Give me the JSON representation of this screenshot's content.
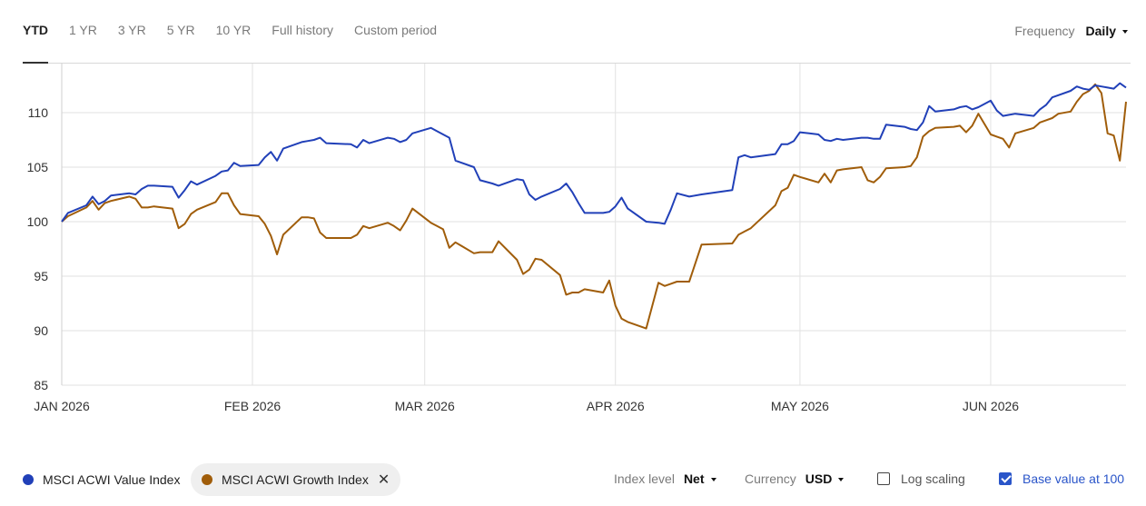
{
  "periods": [
    "YTD",
    "1 YR",
    "3 YR",
    "5 YR",
    "10 YR",
    "Full history",
    "Custom period"
  ],
  "active_period": "YTD",
  "frequency": {
    "label": "Frequency",
    "value": "Daily"
  },
  "legend": [
    {
      "name": "MSCI ACWI Value Index",
      "color": "#2140b8",
      "removable": false
    },
    {
      "name": "MSCI ACWI Growth Index",
      "color": "#a05d0a",
      "removable": true
    }
  ],
  "controls": {
    "index_level": {
      "label": "Index level",
      "value": "Net"
    },
    "currency": {
      "label": "Currency",
      "value": "USD"
    },
    "log_scaling": {
      "label": "Log scaling",
      "checked": false
    },
    "base_value": {
      "label": "Base value at 100",
      "checked": true
    }
  },
  "chart_data": {
    "type": "line",
    "x_start": "2026-01-01",
    "x_end": "2026-06-23",
    "x_ticks": [
      {
        "date": "2026-01-01",
        "label": "JAN 2026"
      },
      {
        "date": "2026-02-01",
        "label": "FEB 2026"
      },
      {
        "date": "2026-03-01",
        "label": "MAR 2026"
      },
      {
        "date": "2026-04-01",
        "label": "APR 2026"
      },
      {
        "date": "2026-05-01",
        "label": "MAY 2026"
      },
      {
        "date": "2026-06-01",
        "label": "JUN 2026"
      }
    ],
    "ylim": [
      85,
      114.5
    ],
    "y_ticks": [
      85,
      90,
      95,
      100,
      105,
      110
    ],
    "grid": true,
    "legend_position": "bottom-left",
    "series": [
      {
        "name": "MSCI ACWI Value Index",
        "color": "#2140b8",
        "points": [
          [
            "2026-01-01",
            100.0
          ],
          [
            "2026-01-02",
            100.8
          ],
          [
            "2026-01-05",
            101.5
          ],
          [
            "2026-01-06",
            102.3
          ],
          [
            "2026-01-07",
            101.6
          ],
          [
            "2026-01-08",
            101.9
          ],
          [
            "2026-01-09",
            102.4
          ],
          [
            "2026-01-12",
            102.6
          ],
          [
            "2026-01-13",
            102.5
          ],
          [
            "2026-01-14",
            103.0
          ],
          [
            "2026-01-15",
            103.3
          ],
          [
            "2026-01-16",
            103.3
          ],
          [
            "2026-01-19",
            103.2
          ],
          [
            "2026-01-20",
            102.2
          ],
          [
            "2026-01-21",
            102.9
          ],
          [
            "2026-01-22",
            103.7
          ],
          [
            "2026-01-23",
            103.4
          ],
          [
            "2026-01-26",
            104.2
          ],
          [
            "2026-01-27",
            104.6
          ],
          [
            "2026-01-28",
            104.7
          ],
          [
            "2026-01-29",
            105.4
          ],
          [
            "2026-01-30",
            105.1
          ],
          [
            "2026-02-02",
            105.2
          ],
          [
            "2026-02-03",
            105.9
          ],
          [
            "2026-02-04",
            106.4
          ],
          [
            "2026-02-05",
            105.6
          ],
          [
            "2026-02-06",
            106.7
          ],
          [
            "2026-02-09",
            107.3
          ],
          [
            "2026-02-10",
            107.4
          ],
          [
            "2026-02-11",
            107.5
          ],
          [
            "2026-02-12",
            107.7
          ],
          [
            "2026-02-13",
            107.2
          ],
          [
            "2026-02-17",
            107.1
          ],
          [
            "2026-02-18",
            106.8
          ],
          [
            "2026-02-19",
            107.5
          ],
          [
            "2026-02-20",
            107.2
          ],
          [
            "2026-02-23",
            107.7
          ],
          [
            "2026-02-24",
            107.6
          ],
          [
            "2026-02-25",
            107.3
          ],
          [
            "2026-02-26",
            107.5
          ],
          [
            "2026-02-27",
            108.1
          ],
          [
            "2026-03-02",
            108.6
          ],
          [
            "2026-03-03",
            108.3
          ],
          [
            "2026-03-04",
            108.0
          ],
          [
            "2026-03-05",
            107.7
          ],
          [
            "2026-03-06",
            105.6
          ],
          [
            "2026-03-09",
            105.0
          ],
          [
            "2026-03-10",
            103.8
          ],
          [
            "2026-03-12",
            103.5
          ],
          [
            "2026-03-13",
            103.3
          ],
          [
            "2026-03-16",
            103.9
          ],
          [
            "2026-03-17",
            103.8
          ],
          [
            "2026-03-18",
            102.5
          ],
          [
            "2026-03-19",
            102.0
          ],
          [
            "2026-03-20",
            102.3
          ],
          [
            "2026-03-23",
            103.0
          ],
          [
            "2026-03-24",
            103.5
          ],
          [
            "2026-03-25",
            102.7
          ],
          [
            "2026-03-26",
            101.7
          ],
          [
            "2026-03-27",
            100.8
          ],
          [
            "2026-03-30",
            100.8
          ],
          [
            "2026-03-31",
            100.9
          ],
          [
            "2026-04-01",
            101.4
          ],
          [
            "2026-04-02",
            102.2
          ],
          [
            "2026-04-03",
            101.2
          ],
          [
            "2026-04-06",
            100.0
          ],
          [
            "2026-04-08",
            99.9
          ],
          [
            "2026-04-09",
            99.8
          ],
          [
            "2026-04-10",
            101.1
          ],
          [
            "2026-04-11",
            102.6
          ],
          [
            "2026-04-13",
            102.3
          ],
          [
            "2026-04-15",
            102.5
          ],
          [
            "2026-04-20",
            102.9
          ],
          [
            "2026-04-21",
            105.9
          ],
          [
            "2026-04-22",
            106.1
          ],
          [
            "2026-04-23",
            105.9
          ],
          [
            "2026-04-27",
            106.2
          ],
          [
            "2026-04-28",
            107.1
          ],
          [
            "2026-04-29",
            107.1
          ],
          [
            "2026-04-30",
            107.4
          ],
          [
            "2026-05-01",
            108.2
          ],
          [
            "2026-05-04",
            108.0
          ],
          [
            "2026-05-05",
            107.5
          ],
          [
            "2026-05-06",
            107.4
          ],
          [
            "2026-05-07",
            107.6
          ],
          [
            "2026-05-08",
            107.5
          ],
          [
            "2026-05-11",
            107.7
          ],
          [
            "2026-05-12",
            107.7
          ],
          [
            "2026-05-13",
            107.6
          ],
          [
            "2026-05-14",
            107.6
          ],
          [
            "2026-05-15",
            108.9
          ],
          [
            "2026-05-18",
            108.7
          ],
          [
            "2026-05-19",
            108.5
          ],
          [
            "2026-05-20",
            108.4
          ],
          [
            "2026-05-21",
            109.1
          ],
          [
            "2026-05-22",
            110.6
          ],
          [
            "2026-05-23",
            110.1
          ],
          [
            "2026-05-26",
            110.3
          ],
          [
            "2026-05-27",
            110.5
          ],
          [
            "2026-05-28",
            110.6
          ],
          [
            "2026-05-29",
            110.3
          ],
          [
            "2026-05-30",
            110.5
          ],
          [
            "2026-06-01",
            111.1
          ],
          [
            "2026-06-02",
            110.2
          ],
          [
            "2026-06-03",
            109.7
          ],
          [
            "2026-06-04",
            109.8
          ],
          [
            "2026-06-05",
            109.9
          ],
          [
            "2026-06-08",
            109.7
          ],
          [
            "2026-06-09",
            110.3
          ],
          [
            "2026-06-10",
            110.7
          ],
          [
            "2026-06-11",
            111.4
          ],
          [
            "2026-06-12",
            111.6
          ],
          [
            "2026-06-14",
            112.0
          ],
          [
            "2026-06-15",
            112.4
          ],
          [
            "2026-06-16",
            112.2
          ],
          [
            "2026-06-17",
            112.1
          ],
          [
            "2026-06-18",
            112.5
          ],
          [
            "2026-06-19",
            112.4
          ],
          [
            "2026-06-20",
            112.3
          ],
          [
            "2026-06-21",
            112.2
          ],
          [
            "2026-06-22",
            112.7
          ],
          [
            "2026-06-23",
            112.3
          ]
        ]
      },
      {
        "name": "MSCI ACWI Growth Index",
        "color": "#a05d0a",
        "points": [
          [
            "2026-01-01",
            100.0
          ],
          [
            "2026-01-02",
            100.5
          ],
          [
            "2026-01-05",
            101.3
          ],
          [
            "2026-01-06",
            101.9
          ],
          [
            "2026-01-07",
            101.1
          ],
          [
            "2026-01-08",
            101.7
          ],
          [
            "2026-01-09",
            101.9
          ],
          [
            "2026-01-12",
            102.3
          ],
          [
            "2026-01-13",
            102.1
          ],
          [
            "2026-01-14",
            101.3
          ],
          [
            "2026-01-15",
            101.3
          ],
          [
            "2026-01-16",
            101.4
          ],
          [
            "2026-01-19",
            101.2
          ],
          [
            "2026-01-20",
            99.4
          ],
          [
            "2026-01-21",
            99.8
          ],
          [
            "2026-01-22",
            100.7
          ],
          [
            "2026-01-23",
            101.1
          ],
          [
            "2026-01-26",
            101.8
          ],
          [
            "2026-01-27",
            102.6
          ],
          [
            "2026-01-28",
            102.6
          ],
          [
            "2026-01-29",
            101.5
          ],
          [
            "2026-01-30",
            100.7
          ],
          [
            "2026-02-02",
            100.5
          ],
          [
            "2026-02-03",
            99.8
          ],
          [
            "2026-02-04",
            98.7
          ],
          [
            "2026-02-05",
            97.0
          ],
          [
            "2026-02-06",
            98.8
          ],
          [
            "2026-02-09",
            100.4
          ],
          [
            "2026-02-10",
            100.4
          ],
          [
            "2026-02-11",
            100.3
          ],
          [
            "2026-02-12",
            99.0
          ],
          [
            "2026-02-13",
            98.5
          ],
          [
            "2026-02-17",
            98.5
          ],
          [
            "2026-02-18",
            98.8
          ],
          [
            "2026-02-19",
            99.6
          ],
          [
            "2026-02-20",
            99.4
          ],
          [
            "2026-02-23",
            99.9
          ],
          [
            "2026-02-24",
            99.6
          ],
          [
            "2026-02-25",
            99.2
          ],
          [
            "2026-02-26",
            100.1
          ],
          [
            "2026-02-27",
            101.2
          ],
          [
            "2026-03-02",
            99.9
          ],
          [
            "2026-03-03",
            99.6
          ],
          [
            "2026-03-04",
            99.3
          ],
          [
            "2026-03-05",
            97.6
          ],
          [
            "2026-03-06",
            98.1
          ],
          [
            "2026-03-09",
            97.1
          ],
          [
            "2026-03-10",
            97.2
          ],
          [
            "2026-03-12",
            97.2
          ],
          [
            "2026-03-13",
            98.2
          ],
          [
            "2026-03-16",
            96.5
          ],
          [
            "2026-03-17",
            95.2
          ],
          [
            "2026-03-18",
            95.6
          ],
          [
            "2026-03-19",
            96.6
          ],
          [
            "2026-03-20",
            96.5
          ],
          [
            "2026-03-23",
            95.1
          ],
          [
            "2026-03-24",
            93.3
          ],
          [
            "2026-03-25",
            93.5
          ],
          [
            "2026-03-26",
            93.5
          ],
          [
            "2026-03-27",
            93.8
          ],
          [
            "2026-03-30",
            93.5
          ],
          [
            "2026-03-31",
            94.6
          ],
          [
            "2026-04-01",
            92.3
          ],
          [
            "2026-04-02",
            91.1
          ],
          [
            "2026-04-03",
            90.8
          ],
          [
            "2026-04-06",
            90.2
          ],
          [
            "2026-04-08",
            94.4
          ],
          [
            "2026-04-09",
            94.1
          ],
          [
            "2026-04-10",
            94.3
          ],
          [
            "2026-04-11",
            94.5
          ],
          [
            "2026-04-13",
            94.5
          ],
          [
            "2026-04-15",
            97.9
          ],
          [
            "2026-04-20",
            98.0
          ],
          [
            "2026-04-21",
            98.8
          ],
          [
            "2026-04-22",
            99.1
          ],
          [
            "2026-04-23",
            99.4
          ],
          [
            "2026-04-27",
            101.5
          ],
          [
            "2026-04-28",
            102.8
          ],
          [
            "2026-04-29",
            103.1
          ],
          [
            "2026-04-30",
            104.3
          ],
          [
            "2026-05-01",
            104.1
          ],
          [
            "2026-05-04",
            103.6
          ],
          [
            "2026-05-05",
            104.4
          ],
          [
            "2026-05-06",
            103.6
          ],
          [
            "2026-05-07",
            104.7
          ],
          [
            "2026-05-08",
            104.8
          ],
          [
            "2026-05-11",
            105.0
          ],
          [
            "2026-05-12",
            103.8
          ],
          [
            "2026-05-13",
            103.6
          ],
          [
            "2026-05-14",
            104.1
          ],
          [
            "2026-05-15",
            104.9
          ],
          [
            "2026-05-18",
            105.0
          ],
          [
            "2026-05-19",
            105.1
          ],
          [
            "2026-05-20",
            105.9
          ],
          [
            "2026-05-21",
            107.8
          ],
          [
            "2026-05-22",
            108.3
          ],
          [
            "2026-05-23",
            108.6
          ],
          [
            "2026-05-26",
            108.7
          ],
          [
            "2026-05-27",
            108.8
          ],
          [
            "2026-05-28",
            108.2
          ],
          [
            "2026-05-29",
            108.8
          ],
          [
            "2026-05-30",
            109.9
          ],
          [
            "2026-06-01",
            108.0
          ],
          [
            "2026-06-02",
            107.8
          ],
          [
            "2026-06-03",
            107.6
          ],
          [
            "2026-06-04",
            106.8
          ],
          [
            "2026-06-05",
            108.1
          ],
          [
            "2026-06-08",
            108.6
          ],
          [
            "2026-06-09",
            109.1
          ],
          [
            "2026-06-10",
            109.3
          ],
          [
            "2026-06-11",
            109.5
          ],
          [
            "2026-06-12",
            109.9
          ],
          [
            "2026-06-14",
            110.1
          ],
          [
            "2026-06-15",
            111.0
          ],
          [
            "2026-06-16",
            111.7
          ],
          [
            "2026-06-17",
            112.0
          ],
          [
            "2026-06-18",
            112.6
          ],
          [
            "2026-06-19",
            111.8
          ],
          [
            "2026-06-20",
            108.1
          ],
          [
            "2026-06-21",
            107.9
          ],
          [
            "2026-06-22",
            105.6
          ],
          [
            "2026-06-23",
            111.0
          ]
        ]
      }
    ]
  }
}
